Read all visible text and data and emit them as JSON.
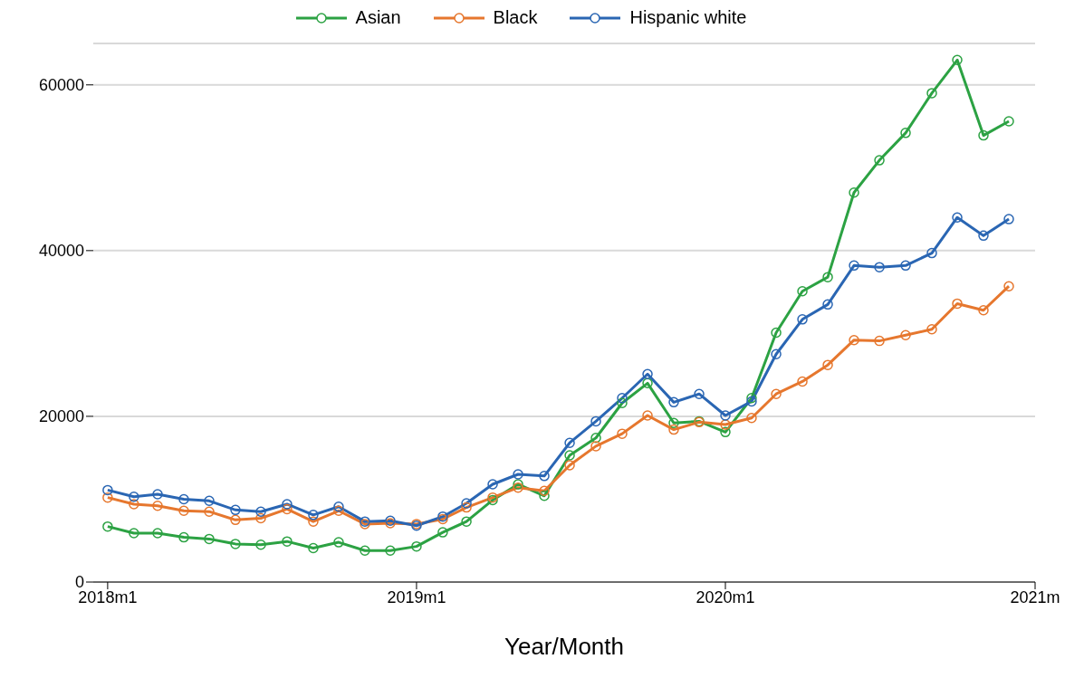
{
  "chart_data": {
    "type": "line",
    "xlabel": "Year/Month",
    "x": [
      "2018-01",
      "2018-02",
      "2018-03",
      "2018-04",
      "2018-05",
      "2018-06",
      "2018-07",
      "2018-08",
      "2018-09",
      "2018-10",
      "2018-11",
      "2018-12",
      "2019-01",
      "2019-02",
      "2019-03",
      "2019-04",
      "2019-05",
      "2019-06",
      "2019-07",
      "2019-08",
      "2019-09",
      "2019-10",
      "2019-11",
      "2019-12",
      "2020-01",
      "2020-02",
      "2020-03",
      "2020-04",
      "2020-05",
      "2020-06",
      "2020-07",
      "2020-08",
      "2020-09",
      "2020-10",
      "2020-11",
      "2020-12"
    ],
    "series": [
      {
        "name": "Asian",
        "color": "#2ca243",
        "values": [
          6700,
          5900,
          5900,
          5400,
          5200,
          4600,
          4500,
          4900,
          4100,
          4800,
          3800,
          3800,
          4300,
          6000,
          7300,
          9900,
          11800,
          10400,
          15300,
          17400,
          21600,
          24000,
          19200,
          19400,
          18100,
          22200,
          30100,
          35100,
          36800,
          47000,
          50900,
          54200,
          59000,
          63000,
          53900,
          55600
        ]
      },
      {
        "name": "Black",
        "color": "#e6772e",
        "values": [
          10200,
          9400,
          9200,
          8600,
          8500,
          7500,
          7700,
          8800,
          7300,
          8600,
          7000,
          7100,
          7000,
          7600,
          9000,
          10200,
          11400,
          11000,
          14100,
          16400,
          17900,
          20100,
          18400,
          19300,
          19000,
          19800,
          22700,
          24200,
          26200,
          29200,
          29100,
          29800,
          30500,
          33600,
          32800,
          35700
        ]
      },
      {
        "name": "Hispanic white",
        "color": "#2a66b3",
        "values": [
          11100,
          10300,
          10600,
          10000,
          9800,
          8700,
          8500,
          9400,
          8100,
          9100,
          7300,
          7400,
          6800,
          7900,
          9500,
          11800,
          13000,
          12800,
          16800,
          19400,
          22200,
          25100,
          21700,
          22700,
          20100,
          21800,
          27500,
          31700,
          33500,
          38200,
          38000,
          38200,
          39700,
          44000,
          41800,
          43800
        ]
      }
    ],
    "xlim": [
      "2017-12-15",
      "2021-01"
    ],
    "xticks": [
      {
        "value": "2018-01",
        "label": "2018m1"
      },
      {
        "value": "2019-01",
        "label": "2019m1"
      },
      {
        "value": "2020-01",
        "label": "2020m1"
      },
      {
        "value": "2021-01",
        "label": "2021m"
      }
    ],
    "ylim": [
      0,
      65000
    ],
    "yticks": [
      0,
      20000,
      40000,
      60000
    ],
    "grid": "y",
    "legend": "top",
    "marker": "circle",
    "line_style": "solid"
  }
}
